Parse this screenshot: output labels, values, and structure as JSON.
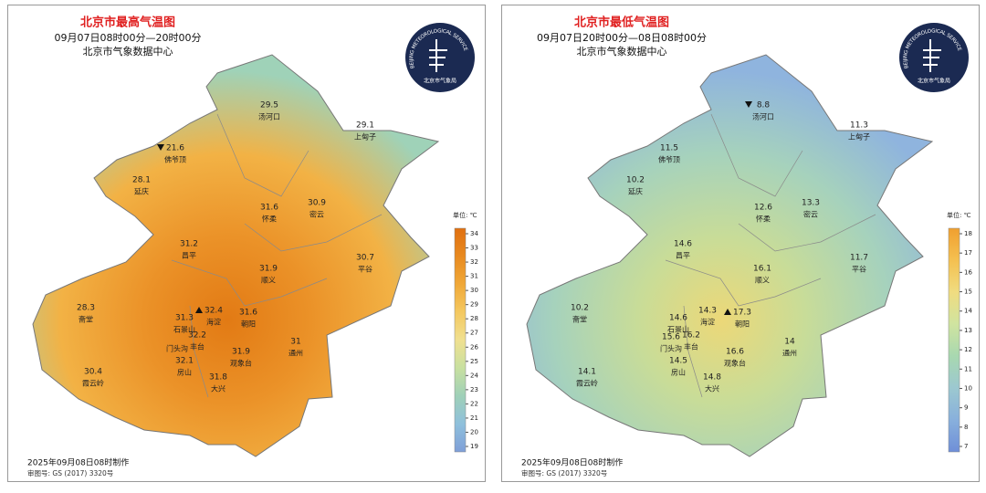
{
  "panels": [
    {
      "title": "北京市最高气温图",
      "period": "09月07日08时00分—20时00分",
      "source": "北京市气象数据中心",
      "logo": {
        "en": "BEIJING METEOROLOGICAL SERVICE",
        "cn": "北京市气象局"
      },
      "colorbar": {
        "unit": "单位: ℃",
        "ticks": [
          19,
          20,
          21,
          22,
          23,
          24,
          25,
          26,
          27,
          28,
          29,
          30,
          31,
          32,
          33,
          34
        ],
        "colors": [
          "#7f9fd8",
          "#8fc0dc",
          "#9fd0b8",
          "#c8e0a0",
          "#f0e090",
          "#f4c860",
          "#f0a838",
          "#e88a20",
          "#e07010"
        ]
      },
      "map_colors": [
        "#e27a14",
        "#eb9228",
        "#f2b245",
        "#9fd2b8"
      ],
      "stations": [
        {
          "value": 29.5,
          "name": "汤河口"
        },
        {
          "value": 29.1,
          "name": "上甸子"
        },
        {
          "value": 21.6,
          "name": "佛爷顶",
          "extreme": "min"
        },
        {
          "value": 28.1,
          "name": "延庆"
        },
        {
          "value": 31.6,
          "name": "怀柔"
        },
        {
          "value": 30.9,
          "name": "密云"
        },
        {
          "value": 31.2,
          "name": "昌平"
        },
        {
          "value": 30.7,
          "name": "平谷"
        },
        {
          "value": 31.9,
          "name": "顺义"
        },
        {
          "value": 28.3,
          "name": "斋堂"
        },
        {
          "value": 32.4,
          "name": "海淀",
          "extreme": "max"
        },
        {
          "value": 31.3,
          "name": "石景山"
        },
        {
          "name": "门头沟"
        },
        {
          "value": 32.2,
          "name": "丰台"
        },
        {
          "value": 31.6,
          "name": "朝阳"
        },
        {
          "value": 31,
          "name": "通州"
        },
        {
          "value": 31.9,
          "name": "观象台"
        },
        {
          "value": 32.1,
          "name": "房山"
        },
        {
          "value": 31.8,
          "name": "大兴"
        },
        {
          "value": 30.4,
          "name": "霞云岭"
        }
      ],
      "footer": [
        "2025年09月08日08时制作",
        "审图号: GS (2017) 3320号"
      ]
    },
    {
      "title": "北京市最低气温图",
      "period": "09月07日20时00分—08日08时00分",
      "source": "北京市气象数据中心",
      "logo": {
        "en": "BEIJING METEOROLOGICAL SERVICE",
        "cn": "北京市气象局"
      },
      "colorbar": {
        "unit": "单位: ℃",
        "ticks": [
          7,
          8,
          9,
          10,
          11,
          12,
          13,
          14,
          15,
          16,
          17,
          18
        ],
        "colors": [
          "#6f8fd8",
          "#88b0dc",
          "#9cc8d0",
          "#a8d8b0",
          "#d0e4a0",
          "#f0dc80",
          "#f4c050",
          "#f0a030"
        ]
      },
      "map_colors": [
        "#ecd878",
        "#c8dc98",
        "#a6d2bc",
        "#8fb4de"
      ],
      "stations": [
        {
          "value": 8.8,
          "name": "汤河口",
          "extreme": "min"
        },
        {
          "value": 11.3,
          "name": "上甸子"
        },
        {
          "value": 11.5,
          "name": "佛爷顶"
        },
        {
          "value": 10.2,
          "name": "延庆"
        },
        {
          "value": 12.6,
          "name": "怀柔"
        },
        {
          "value": 13.3,
          "name": "密云"
        },
        {
          "value": 14.6,
          "name": "昌平"
        },
        {
          "value": 11.7,
          "name": "平谷"
        },
        {
          "value": 16.1,
          "name": "顺义"
        },
        {
          "value": 10.2,
          "name": "斋堂"
        },
        {
          "value": 14.3,
          "name": "海淀"
        },
        {
          "value": 14.6,
          "name": "石景山"
        },
        {
          "value": 15.6,
          "name": "门头沟"
        },
        {
          "value": 16.2,
          "name": "丰台"
        },
        {
          "value": 17.3,
          "name": "朝阳",
          "extreme": "max"
        },
        {
          "value": 14,
          "name": "通州"
        },
        {
          "value": 16.6,
          "name": "观象台"
        },
        {
          "value": 14.5,
          "name": "房山"
        },
        {
          "value": 14.8,
          "name": "大兴"
        },
        {
          "value": 14.1,
          "name": "霞云岭"
        }
      ],
      "footer": [
        "2025年09月08日08时制作",
        "审图号: GS (2017) 3320号"
      ]
    }
  ]
}
